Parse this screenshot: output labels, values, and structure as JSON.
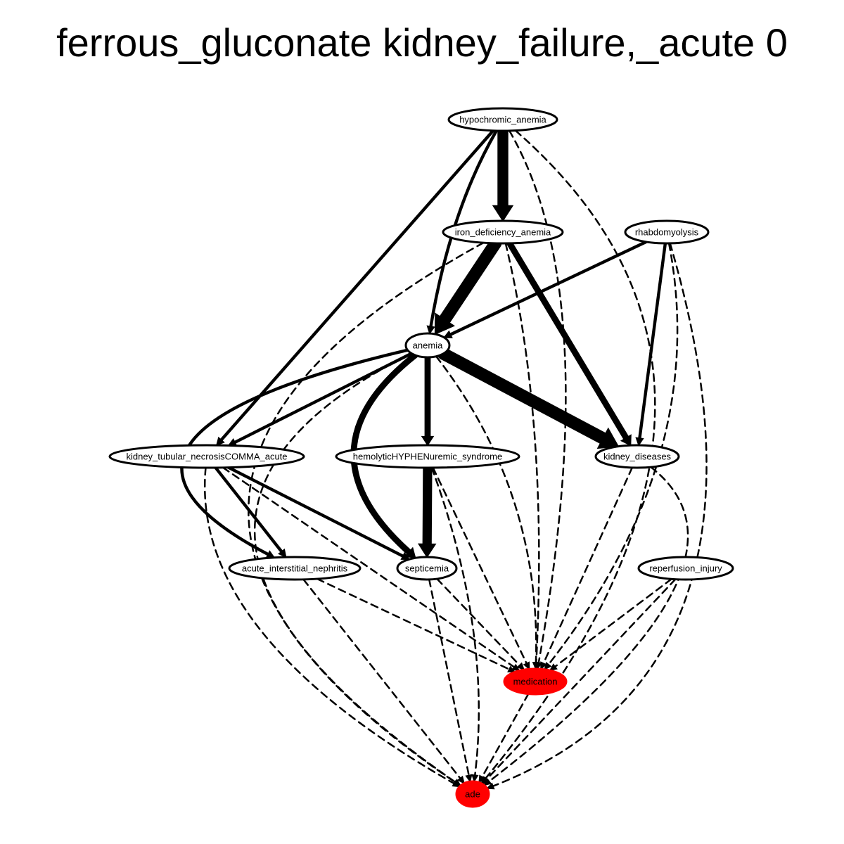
{
  "title": "ferrous_gluconate kidney_failure,_acute 0",
  "colors": {
    "highlight": "#ff0000",
    "default": "#ffffff",
    "stroke": "#000000"
  },
  "nodes": [
    {
      "id": "hypochromic_anemia",
      "label": "hypochromic_anemia",
      "highlight": false
    },
    {
      "id": "iron_deficiency_anemia",
      "label": "iron_deficiency_anemia",
      "highlight": false
    },
    {
      "id": "rhabdomyolysis",
      "label": "rhabdomyolysis",
      "highlight": false
    },
    {
      "id": "anemia",
      "label": "anemia",
      "highlight": false
    },
    {
      "id": "kidney_tubular_necrosis",
      "label": "kidney_tubular_necrosisCOMMA_acute",
      "highlight": false
    },
    {
      "id": "hus",
      "label": "hemolyticHYPHENuremic_syndrome",
      "highlight": false
    },
    {
      "id": "kidney_diseases",
      "label": "kidney_diseases",
      "highlight": false
    },
    {
      "id": "ain",
      "label": "acute_interstitial_nephritis",
      "highlight": false
    },
    {
      "id": "septicemia",
      "label": "septicemia",
      "highlight": false
    },
    {
      "id": "reperfusion_injury",
      "label": "reperfusion_injury",
      "highlight": false
    },
    {
      "id": "medication",
      "label": "medication",
      "highlight": true
    },
    {
      "id": "ade",
      "label": "ade",
      "highlight": true
    }
  ],
  "edges": [
    {
      "from": "hypochromic_anemia",
      "to": "iron_deficiency_anemia",
      "style": "solid",
      "weight": 7
    },
    {
      "from": "hypochromic_anemia",
      "to": "anemia",
      "style": "solid",
      "weight": 2
    },
    {
      "from": "hypochromic_anemia",
      "to": "kidney_tubular_necrosis",
      "style": "solid",
      "weight": 2
    },
    {
      "from": "hypochromic_anemia",
      "to": "medication",
      "style": "dashed",
      "weight": 1
    },
    {
      "from": "hypochromic_anemia",
      "to": "ade",
      "style": "dashed",
      "weight": 1
    },
    {
      "from": "iron_deficiency_anemia",
      "to": "anemia",
      "style": "solid",
      "weight": 8
    },
    {
      "from": "iron_deficiency_anemia",
      "to": "kidney_diseases",
      "style": "solid",
      "weight": 4
    },
    {
      "from": "iron_deficiency_anemia",
      "to": "medication",
      "style": "dashed",
      "weight": 1
    },
    {
      "from": "iron_deficiency_anemia",
      "to": "ade",
      "style": "dashed",
      "weight": 1
    },
    {
      "from": "rhabdomyolysis",
      "to": "anemia",
      "style": "solid",
      "weight": 2
    },
    {
      "from": "rhabdomyolysis",
      "to": "kidney_diseases",
      "style": "solid",
      "weight": 2
    },
    {
      "from": "rhabdomyolysis",
      "to": "medication",
      "style": "dashed",
      "weight": 1
    },
    {
      "from": "rhabdomyolysis",
      "to": "ade",
      "style": "dashed",
      "weight": 1
    },
    {
      "from": "anemia",
      "to": "kidney_tubular_necrosis",
      "style": "solid",
      "weight": 2
    },
    {
      "from": "anemia",
      "to": "hus",
      "style": "solid",
      "weight": 4
    },
    {
      "from": "anemia",
      "to": "kidney_diseases",
      "style": "solid",
      "weight": 8
    },
    {
      "from": "anemia",
      "to": "ain",
      "style": "solid",
      "weight": 2
    },
    {
      "from": "anemia",
      "to": "septicemia",
      "style": "solid",
      "weight": 4
    },
    {
      "from": "anemia",
      "to": "medication",
      "style": "dashed",
      "weight": 1
    },
    {
      "from": "anemia",
      "to": "ade",
      "style": "dashed",
      "weight": 1
    },
    {
      "from": "kidney_tubular_necrosis",
      "to": "ain",
      "style": "solid",
      "weight": 2
    },
    {
      "from": "kidney_tubular_necrosis",
      "to": "septicemia",
      "style": "solid",
      "weight": 2
    },
    {
      "from": "kidney_tubular_necrosis",
      "to": "medication",
      "style": "dashed",
      "weight": 1
    },
    {
      "from": "kidney_tubular_necrosis",
      "to": "ade",
      "style": "dashed",
      "weight": 1
    },
    {
      "from": "hus",
      "to": "septicemia",
      "style": "solid",
      "weight": 6
    },
    {
      "from": "hus",
      "to": "medication",
      "style": "dashed",
      "weight": 1
    },
    {
      "from": "hus",
      "to": "ade",
      "style": "dashed",
      "weight": 1
    },
    {
      "from": "kidney_diseases",
      "to": "medication",
      "style": "dashed",
      "weight": 1
    },
    {
      "from": "kidney_diseases",
      "to": "ade",
      "style": "dashed",
      "weight": 1
    },
    {
      "from": "ain",
      "to": "medication",
      "style": "dashed",
      "weight": 1
    },
    {
      "from": "ain",
      "to": "ade",
      "style": "dashed",
      "weight": 1
    },
    {
      "from": "septicemia",
      "to": "medication",
      "style": "dashed",
      "weight": 1
    },
    {
      "from": "septicemia",
      "to": "ade",
      "style": "dashed",
      "weight": 1
    },
    {
      "from": "reperfusion_injury",
      "to": "medication",
      "style": "dashed",
      "weight": 1
    },
    {
      "from": "reperfusion_injury",
      "to": "ade",
      "style": "dashed",
      "weight": 1
    },
    {
      "from": "medication",
      "to": "ade",
      "style": "dashed",
      "weight": 1
    }
  ]
}
